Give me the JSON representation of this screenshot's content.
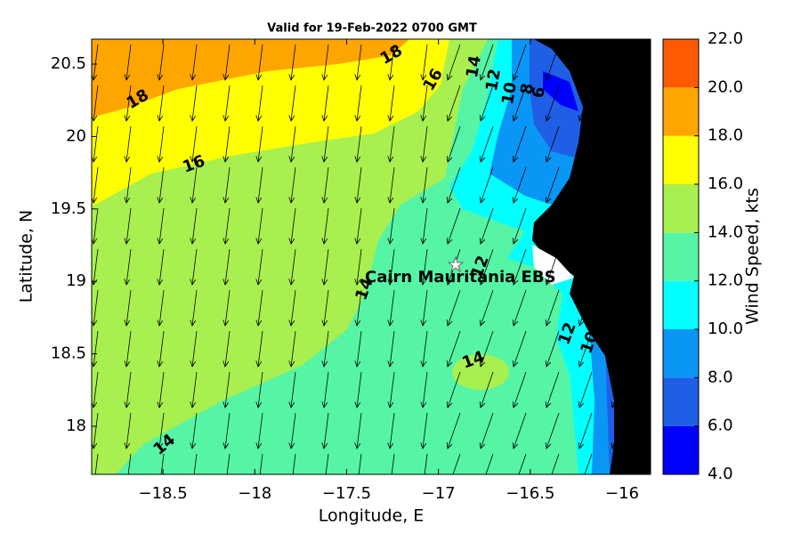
{
  "title": "Valid for 19-Feb-2022 0700 GMT",
  "xaxis": {
    "label": "Longitude, E",
    "lim": [
      -18.888,
      -15.845
    ],
    "ticks": [
      {
        "value": -18.5,
        "label": "−18.5"
      },
      {
        "value": -18,
        "label": "−18"
      },
      {
        "value": -17.5,
        "label": "−17.5"
      },
      {
        "value": -17,
        "label": "−17"
      },
      {
        "value": -16.5,
        "label": "−16.5"
      },
      {
        "value": -16,
        "label": "−16"
      }
    ]
  },
  "yaxis": {
    "label": "Latitude, N",
    "lim": [
      17.668,
      20.672
    ],
    "ticks": [
      18,
      18.5,
      19,
      19.5,
      20,
      20.5
    ]
  },
  "colorbar": {
    "label": "Wind Speed, kts",
    "lim": [
      4,
      22
    ],
    "ticks": [
      {
        "value": 4,
        "label": "4.0"
      },
      {
        "value": 6,
        "label": "6.0"
      },
      {
        "value": 8,
        "label": "8.0"
      },
      {
        "value": 10,
        "label": "10.0"
      },
      {
        "value": 12,
        "label": "12.0"
      },
      {
        "value": 14,
        "label": "14.0"
      },
      {
        "value": 16,
        "label": "16.0"
      },
      {
        "value": 18,
        "label": "18.0"
      },
      {
        "value": 20,
        "label": "20.0"
      },
      {
        "value": 22,
        "label": "22.0"
      }
    ],
    "colors": [
      "#0000ff",
      "#1f5fe6",
      "#0a96f5",
      "#00ffff",
      "#55f5a5",
      "#a8f04f",
      "#ffff00",
      "#ffa500",
      "#ff5a00"
    ]
  },
  "site": "Cairn Mauritania EBS",
  "contour_labels": [
    "18",
    "18",
    "16",
    "16",
    "14",
    "12",
    "10",
    "8",
    "6",
    "14",
    "12",
    "14",
    "12",
    "10",
    "14"
  ]
}
